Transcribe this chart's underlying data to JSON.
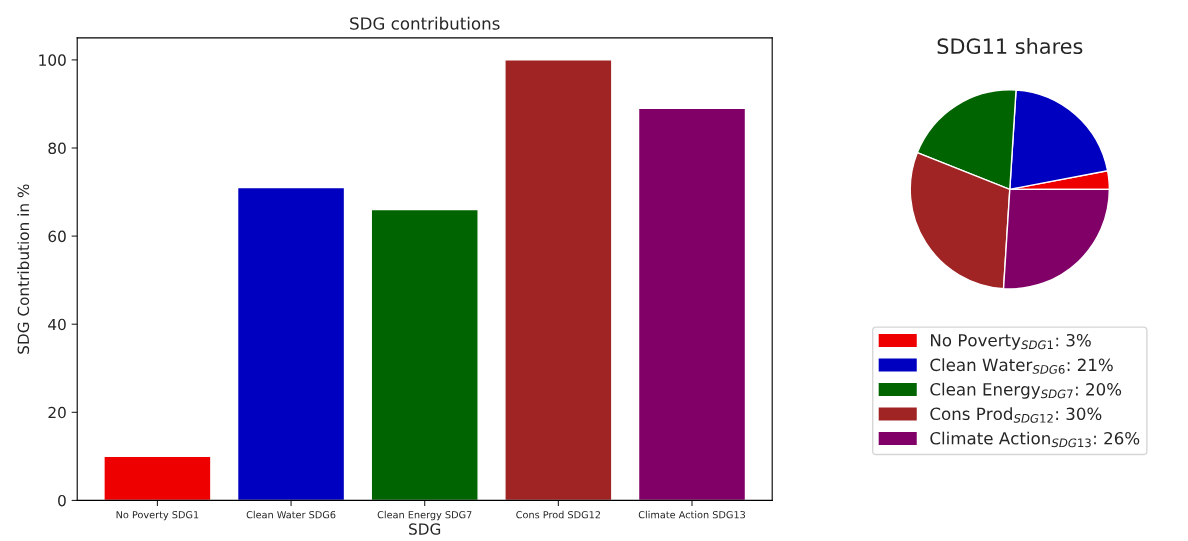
{
  "chart_data": [
    {
      "type": "bar",
      "title": "SDG contributions",
      "xlabel": "SDG",
      "ylabel": "SDG Contribution in %",
      "categories": [
        "No Poverty SDG1",
        "Clean Water SDG6",
        "Clean Energy SDG7",
        "Cons Prod SDG12",
        "Climate Action SDG13"
      ],
      "values": [
        10,
        71,
        66,
        100,
        89
      ],
      "colors": [
        "#ee0000",
        "#0000c0",
        "#006400",
        "#a02424",
        "#800068"
      ],
      "ylim": [
        0,
        105
      ],
      "yticks": [
        0,
        20,
        40,
        60,
        80,
        100
      ],
      "grid": false
    },
    {
      "type": "pie",
      "title": "SDG11 shares",
      "categories": [
        "No Poverty$_{SDG1}$: 3%",
        "Clean Water$_{SDG6}$: 21%",
        "Clean Energy$_{SDG7}$: 20%",
        "Cons Prod$_{SDG12}$: 30%",
        "Climate Action$_{SDG13}$: 26%"
      ],
      "values": [
        3,
        21,
        20,
        30,
        26
      ],
      "colors": [
        "#ee0000",
        "#0000c0",
        "#006400",
        "#a02424",
        "#800068"
      ],
      "legend": "bottom"
    }
  ]
}
